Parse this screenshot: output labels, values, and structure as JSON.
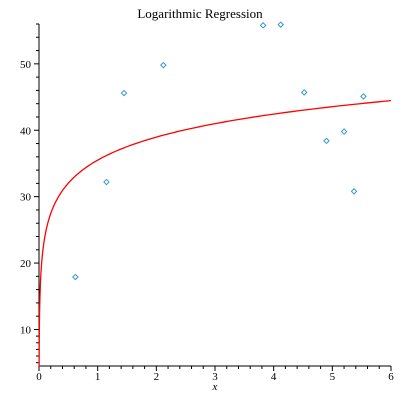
{
  "chart_data": {
    "type": "scatter",
    "title": "Logarithmic Regression",
    "xlabel": "x",
    "ylabel": "",
    "xlim": [
      0,
      6
    ],
    "ylim": [
      4.5,
      56
    ],
    "x_ticks": [
      "0",
      "1",
      "2",
      "3",
      "4",
      "5",
      "6"
    ],
    "y_ticks": [
      "10",
      "20",
      "30",
      "40",
      "50"
    ],
    "x_tick_values": [
      0,
      1,
      2,
      3,
      4,
      5,
      6
    ],
    "y_tick_values": [
      10,
      20,
      30,
      40,
      50
    ],
    "grid": false,
    "series": [
      {
        "type": "scatter",
        "marker": "diamond",
        "color": "#3399cc",
        "points": [
          {
            "x": 0.62,
            "y": 17.9
          },
          {
            "x": 1.15,
            "y": 32.2
          },
          {
            "x": 1.45,
            "y": 45.6
          },
          {
            "x": 2.12,
            "y": 49.8
          },
          {
            "x": 3.82,
            "y": 55.8
          },
          {
            "x": 4.12,
            "y": 55.9
          },
          {
            "x": 4.52,
            "y": 45.7
          },
          {
            "x": 4.9,
            "y": 38.4
          },
          {
            "x": 5.2,
            "y": 39.8
          },
          {
            "x": 5.37,
            "y": 30.8
          },
          {
            "x": 5.53,
            "y": 45.1
          }
        ]
      },
      {
        "type": "line",
        "color": "#ff0000",
        "model": "log",
        "intercept": 35.5,
        "slope": 5.0
      }
    ]
  }
}
